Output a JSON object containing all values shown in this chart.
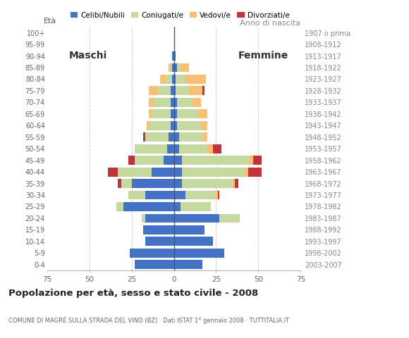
{
  "age_groups": [
    "0-4",
    "5-9",
    "10-14",
    "15-19",
    "20-24",
    "25-29",
    "30-34",
    "35-39",
    "40-44",
    "45-49",
    "50-54",
    "55-59",
    "60-64",
    "65-69",
    "70-74",
    "75-79",
    "80-84",
    "85-89",
    "90-94",
    "95-99",
    "100+"
  ],
  "birth_years": [
    "2003-2007",
    "1998-2002",
    "1993-1997",
    "1988-1992",
    "1983-1987",
    "1978-1982",
    "1973-1977",
    "1968-1972",
    "1963-1967",
    "1958-1962",
    "1953-1957",
    "1948-1952",
    "1943-1947",
    "1938-1942",
    "1933-1937",
    "1928-1932",
    "1923-1927",
    "1918-1922",
    "1913-1917",
    "1908-1912",
    "1907 o prima"
  ],
  "males": {
    "celibe": [
      23,
      26,
      17,
      18,
      17,
      30,
      17,
      25,
      13,
      6,
      4,
      3,
      2,
      2,
      2,
      2,
      1,
      1,
      1,
      0,
      0
    ],
    "coniugato": [
      0,
      0,
      0,
      0,
      2,
      4,
      10,
      6,
      20,
      17,
      19,
      14,
      13,
      11,
      10,
      8,
      4,
      1,
      0,
      0,
      0
    ],
    "vedovo": [
      0,
      0,
      0,
      0,
      0,
      0,
      0,
      0,
      0,
      0,
      0,
      0,
      1,
      2,
      3,
      5,
      3,
      1,
      0,
      0,
      0
    ],
    "divorziato": [
      0,
      0,
      0,
      0,
      0,
      0,
      0,
      2,
      6,
      4,
      0,
      1,
      0,
      0,
      0,
      0,
      0,
      0,
      0,
      0,
      0
    ]
  },
  "females": {
    "nubile": [
      17,
      30,
      23,
      18,
      27,
      4,
      7,
      5,
      5,
      5,
      3,
      3,
      2,
      2,
      2,
      1,
      1,
      2,
      1,
      0,
      0
    ],
    "coniugata": [
      0,
      0,
      0,
      0,
      12,
      18,
      18,
      30,
      37,
      40,
      17,
      14,
      14,
      13,
      9,
      8,
      6,
      2,
      0,
      0,
      0
    ],
    "vedova": [
      0,
      0,
      0,
      0,
      0,
      0,
      1,
      1,
      2,
      2,
      3,
      3,
      4,
      5,
      5,
      8,
      12,
      5,
      0,
      0,
      0
    ],
    "divorziata": [
      0,
      0,
      0,
      0,
      0,
      0,
      1,
      2,
      8,
      5,
      5,
      0,
      0,
      0,
      0,
      1,
      0,
      0,
      0,
      0,
      0
    ]
  },
  "colors": {
    "celibe": "#4472C4",
    "coniugato": "#C5D9A0",
    "vedovo": "#FBBF72",
    "divorziato": "#C0323C"
  },
  "xlim": 75,
  "title": "Popolazione per età, sesso e stato civile - 2008",
  "subtitle": "COMUNE DI MAGRÈ SULLA STRADA DEL VINO (BZ) · Dati ISTAT 1° gennaio 2008 · TUTTITALIA.IT",
  "legend_labels": [
    "Celibi/Nubili",
    "Coniugati/e",
    "Vedovi/e",
    "Divorziati/e"
  ],
  "eta_label": "Età",
  "anno_label": "Anno di nascita",
  "maschi_label": "Maschi",
  "femmine_label": "Femmine"
}
